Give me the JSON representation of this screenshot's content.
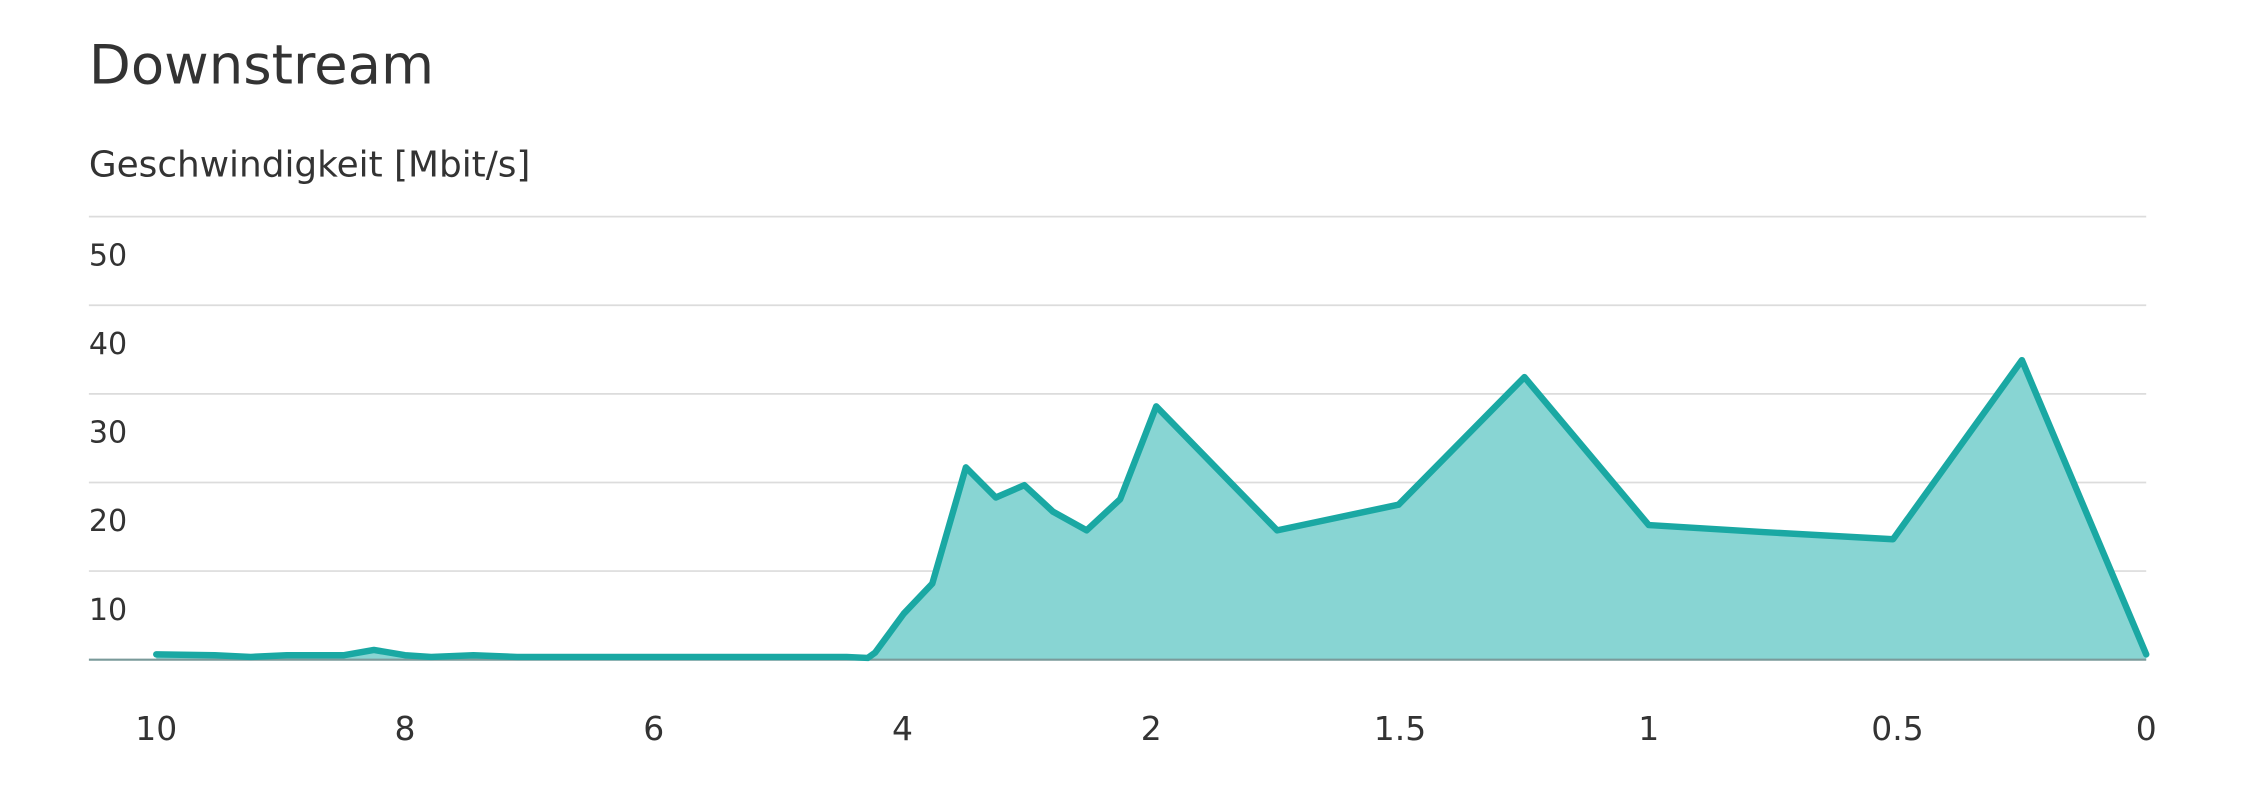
{
  "chart_data": {
    "type": "area",
    "title": "Downstream",
    "y_label": "Geschwindigkeit [Mbit/s]",
    "x": [
      10,
      9.53,
      9.24,
      8.95,
      8.49,
      8.25,
      8,
      7.79,
      7.45,
      7.1,
      6,
      4.45,
      4.28,
      4.22,
      3.99,
      3.76,
      3.49,
      3.25,
      3.02,
      2.79,
      2.52,
      2.25,
      1.99,
      1.747,
      1.503,
      1.25,
      1,
      0.77,
      0.509,
      0.25,
      0
    ],
    "values": [
      0.6,
      0.5,
      0.3,
      0.5,
      0.5,
      1.1,
      0.5,
      0.3,
      0.5,
      0.3,
      0.3,
      0.3,
      0.2,
      0.8,
      5.2,
      8.6,
      21.7,
      18.3,
      19.7,
      16.7,
      14.6,
      18.1,
      28.6,
      14.6,
      17.5,
      31.9,
      15.2,
      14.4,
      13.6,
      33.8,
      0.6
    ],
    "color": "#1aa8a3",
    "fill_color": "#88d5d3",
    "xlim": [
      10,
      0
    ],
    "xticks": [
      10,
      8,
      6,
      4,
      2,
      1.5,
      1,
      0.5,
      0
    ],
    "ylim": [
      0,
      50
    ],
    "yticks": [
      10,
      20,
      30,
      40,
      50
    ],
    "grid": true
  }
}
